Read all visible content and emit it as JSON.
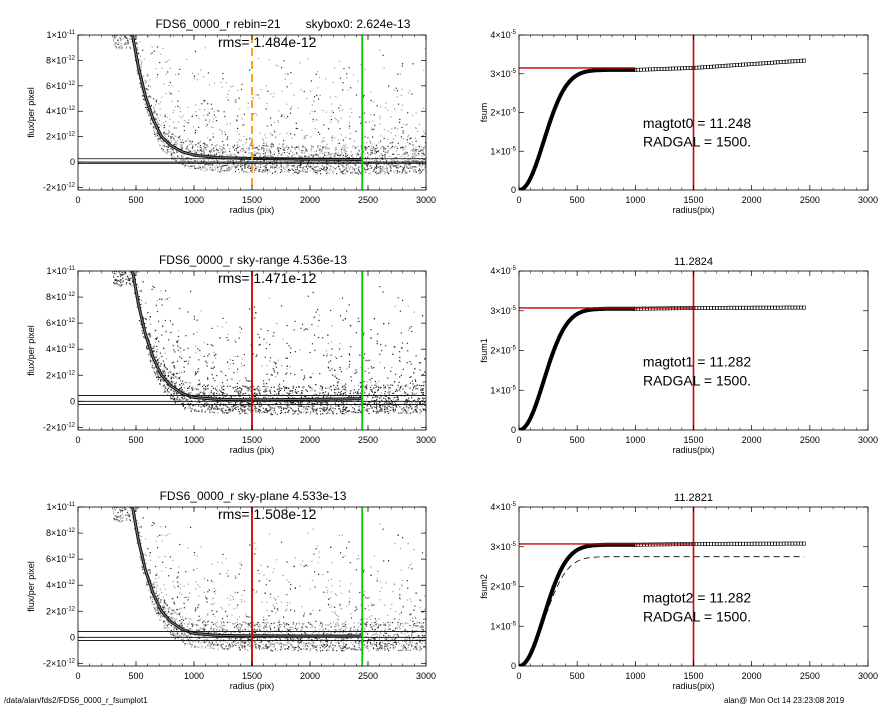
{
  "footer": {
    "path": "/data/alan/fds2/FDS6_0000_r_fsumplot1",
    "stamp": "alan@  Mon Oct 14 23:23:08 2019"
  },
  "colors": {
    "red": "#cc0000",
    "green": "#00cc00",
    "orange": "#ff9900",
    "points_dark": "#2b2b2b",
    "points_light": "#a0a0a0"
  },
  "chart_data": [
    {
      "type": "scatter",
      "title_parts": [
        "FDS6_0000_r rebin=21",
        "skybox0:  2.624e-13"
      ],
      "rms": "rms= 1.484e-12",
      "xlabel": "radius (pix)",
      "ylabel": "flux/per pixel",
      "xlim": [
        0,
        3000
      ],
      "ylim": [
        -2.2e-12,
        1e-11
      ],
      "xticks": [
        "0",
        "500",
        "1000",
        "1500",
        "2000",
        "2500",
        "3000"
      ],
      "yticks": [
        {
          "v": -2e-12,
          "m": "-2",
          "e": "-12"
        },
        {
          "v": 0,
          "m": "0",
          "e": ""
        },
        {
          "v": 2e-12,
          "m": "2",
          "e": "-12"
        },
        {
          "v": 4e-12,
          "m": "4",
          "e": "-12"
        },
        {
          "v": 6e-12,
          "m": "6",
          "e": "-12"
        },
        {
          "v": 8e-12,
          "m": "8",
          "e": "-12"
        },
        {
          "v": 1e-11,
          "m": "1",
          "e": "-11"
        }
      ],
      "vlines": [
        {
          "x": 1500,
          "color": "orange",
          "dash": true
        },
        {
          "x": 2450,
          "color": "green",
          "dash": false
        }
      ],
      "hlines": [
        0,
        2.624e-13,
        -1e-13
      ],
      "profile": [
        [
          470,
          1e-11
        ],
        [
          520,
          7.5e-12
        ],
        [
          580,
          5.2e-12
        ],
        [
          650,
          3.3e-12
        ],
        [
          720,
          2e-12
        ],
        [
          800,
          1.3e-12
        ],
        [
          900,
          8e-13
        ],
        [
          1000,
          5.5e-13
        ],
        [
          1200,
          3.5e-13
        ],
        [
          1500,
          2.8e-13
        ],
        [
          2000,
          2.2e-13
        ],
        [
          2450,
          2e-13
        ]
      ],
      "cloud": "light"
    },
    {
      "type": "line",
      "title": "",
      "xlabel": "radius(pix)",
      "ylabel": "fsum",
      "xlim": [
        0,
        3000
      ],
      "ylim": [
        0,
        4e-05
      ],
      "xticks": [
        "0",
        "500",
        "1000",
        "1500",
        "2000",
        "2500",
        "3000"
      ],
      "yticks": [
        {
          "v": 0,
          "m": "0",
          "e": ""
        },
        {
          "v": 1e-05,
          "m": "1",
          "e": "-5"
        },
        {
          "v": 2e-05,
          "m": "2",
          "e": "-5"
        },
        {
          "v": 3e-05,
          "m": "3",
          "e": "-5"
        },
        {
          "v": 4e-05,
          "m": "4",
          "e": "-5"
        }
      ],
      "vline": 1500,
      "hline": {
        "y": 3.15e-05,
        "x_end": 1000
      },
      "annotation": [
        "magtot0 =  11.248",
        "RADGAL =   1500."
      ],
      "plateau": [
        [
          1000,
          3.1e-05
        ],
        [
          1500,
          3.15e-05
        ],
        [
          2450,
          3.34e-05
        ]
      ],
      "dashed": null
    },
    {
      "type": "scatter",
      "title_parts": [
        "FDS6_0000_r sky-range  4.536e-13"
      ],
      "rms": "rms= 1.471e-12",
      "xlabel": "radius (pix)",
      "ylabel": "flux/per pixel",
      "xlim": [
        0,
        3000
      ],
      "ylim": [
        -2.2e-12,
        1e-11
      ],
      "xticks": [
        "0",
        "500",
        "1000",
        "1500",
        "2000",
        "2500",
        "3000"
      ],
      "yticks": [
        {
          "v": -2e-12,
          "m": "-2",
          "e": "-12"
        },
        {
          "v": 0,
          "m": "0",
          "e": ""
        },
        {
          "v": 2e-12,
          "m": "2",
          "e": "-12"
        },
        {
          "v": 4e-12,
          "m": "4",
          "e": "-12"
        },
        {
          "v": 6e-12,
          "m": "6",
          "e": "-12"
        },
        {
          "v": 8e-12,
          "m": "8",
          "e": "-12"
        },
        {
          "v": 1e-11,
          "m": "1",
          "e": "-11"
        }
      ],
      "vlines": [
        {
          "x": 1500,
          "color": "red",
          "dash": false
        },
        {
          "x": 2450,
          "color": "green",
          "dash": false
        }
      ],
      "hlines": [
        0,
        4.536e-13,
        -2.5e-13
      ],
      "profile": [
        [
          470,
          1e-11
        ],
        [
          520,
          7.5e-12
        ],
        [
          580,
          5.2e-12
        ],
        [
          650,
          3.3e-12
        ],
        [
          720,
          2e-12
        ],
        [
          800,
          1.2e-12
        ],
        [
          900,
          6e-13
        ],
        [
          1000,
          3e-13
        ],
        [
          1200,
          1.5e-13
        ],
        [
          1500,
          1.2e-13
        ],
        [
          2000,
          1.5e-13
        ],
        [
          2450,
          2e-13
        ]
      ],
      "cloud": "dark"
    },
    {
      "type": "line",
      "title": "11.2824",
      "xlabel": "radius(pix)",
      "ylabel": "fsum1",
      "xlim": [
        0,
        3000
      ],
      "ylim": [
        0,
        4e-05
      ],
      "xticks": [
        "0",
        "500",
        "1000",
        "1500",
        "2000",
        "2500",
        "3000"
      ],
      "yticks": [
        {
          "v": 0,
          "m": "0",
          "e": ""
        },
        {
          "v": 1e-05,
          "m": "1",
          "e": "-5"
        },
        {
          "v": 2e-05,
          "m": "2",
          "e": "-5"
        },
        {
          "v": 3e-05,
          "m": "3",
          "e": "-5"
        },
        {
          "v": 4e-05,
          "m": "4",
          "e": "-5"
        }
      ],
      "vline": 1500,
      "hline": {
        "y": 3.07e-05,
        "x_end": 1500
      },
      "annotation": [
        "magtot1 =  11.282",
        "RADGAL =   1500."
      ],
      "plateau": [
        [
          1000,
          3.05e-05
        ],
        [
          1500,
          3.07e-05
        ],
        [
          2450,
          3.08e-05
        ]
      ],
      "dashed": null
    },
    {
      "type": "scatter",
      "title_parts": [
        "FDS6_0000_r sky-plane  4.533e-13"
      ],
      "rms": "rms= 1.508e-12",
      "xlabel": "radius (pix)",
      "ylabel": "flux/per pixel",
      "xlim": [
        0,
        3000
      ],
      "ylim": [
        -2.2e-12,
        1e-11
      ],
      "xticks": [
        "0",
        "500",
        "1000",
        "1500",
        "2000",
        "2500",
        "3000"
      ],
      "yticks": [
        {
          "v": -2e-12,
          "m": "-2",
          "e": "-12"
        },
        {
          "v": 0,
          "m": "0",
          "e": ""
        },
        {
          "v": 2e-12,
          "m": "2",
          "e": "-12"
        },
        {
          "v": 4e-12,
          "m": "4",
          "e": "-12"
        },
        {
          "v": 6e-12,
          "m": "6",
          "e": "-12"
        },
        {
          "v": 8e-12,
          "m": "8",
          "e": "-12"
        },
        {
          "v": 1e-11,
          "m": "1",
          "e": "-11"
        }
      ],
      "vlines": [
        {
          "x": 1500,
          "color": "red",
          "dash": false
        },
        {
          "x": 2450,
          "color": "green",
          "dash": false
        }
      ],
      "hlines": [
        0,
        4.533e-13,
        -2.5e-13
      ],
      "profile": [
        [
          470,
          1e-11
        ],
        [
          520,
          7.5e-12
        ],
        [
          580,
          5.2e-12
        ],
        [
          650,
          3.3e-12
        ],
        [
          720,
          2e-12
        ],
        [
          800,
          1.2e-12
        ],
        [
          900,
          6e-13
        ],
        [
          1000,
          3e-13
        ],
        [
          1200,
          1.5e-13
        ],
        [
          1500,
          1.2e-13
        ],
        [
          2000,
          1e-13
        ],
        [
          2450,
          1e-13
        ]
      ],
      "cloud": "light"
    },
    {
      "type": "line",
      "title": "11.2821",
      "xlabel": "radius(pix)",
      "ylabel": "fsum2",
      "xlim": [
        0,
        3000
      ],
      "ylim": [
        0,
        4e-05
      ],
      "xticks": [
        "0",
        "500",
        "1000",
        "1500",
        "2000",
        "2500",
        "3000"
      ],
      "yticks": [
        {
          "v": 0,
          "m": "0",
          "e": ""
        },
        {
          "v": 1e-05,
          "m": "1",
          "e": "-5"
        },
        {
          "v": 2e-05,
          "m": "2",
          "e": "-5"
        },
        {
          "v": 3e-05,
          "m": "3",
          "e": "-5"
        },
        {
          "v": 4e-05,
          "m": "4",
          "e": "-5"
        }
      ],
      "vline": 1500,
      "hline": {
        "y": 3.07e-05,
        "x_end": 1500
      },
      "annotation": [
        "magtot2 =  11.282",
        "RADGAL =   1500."
      ],
      "plateau": [
        [
          1000,
          3.05e-05
        ],
        [
          1500,
          3.07e-05
        ],
        [
          2450,
          3.08e-05
        ]
      ],
      "dashed": {
        "end": 2.75e-05
      }
    }
  ]
}
